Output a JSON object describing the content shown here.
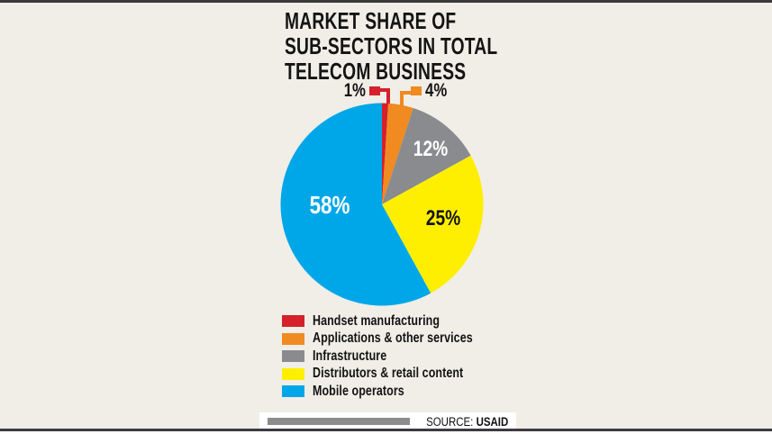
{
  "title": {
    "line1": "MARKET SHARE OF",
    "line2": "SUB-SECTORS IN TOTAL",
    "line3": "TELECOM BUSINESS"
  },
  "chart_data": {
    "type": "pie",
    "title": "MARKET SHARE OF SUB-SECTORS IN TOTAL TELECOM BUSINESS",
    "start_angle_deg": 0,
    "direction": "clockwise",
    "slices": [
      {
        "label": "Handset manufacturing",
        "value_pct": 1,
        "value_label": "1%",
        "color": "#d4212b",
        "label_style": "callout-left"
      },
      {
        "label": "Applications & other services",
        "value_pct": 4,
        "value_label": "4%",
        "color": "#f08a21",
        "label_style": "callout-right"
      },
      {
        "label": "Infrastructure",
        "value_pct": 12,
        "value_label": "12%",
        "color": "#8a8b8e",
        "label_style": "inside-white"
      },
      {
        "label": "Distributors & retail content",
        "value_pct": 25,
        "value_label": "25%",
        "color": "#feef00",
        "label_style": "inside-black"
      },
      {
        "label": "Mobile operators",
        "value_pct": 58,
        "value_label": "58%",
        "color": "#00a7e8",
        "label_style": "inside-white"
      }
    ],
    "legend_position": "bottom-left"
  },
  "source": {
    "prefix": "SOURCE: ",
    "name": "USAID"
  },
  "colors": {
    "background": "#f1eee7",
    "top_rule": "#3a3a38",
    "bottom_rule": "#3b3b41",
    "source_bar": "#8c8c8c",
    "text": "#141414"
  }
}
